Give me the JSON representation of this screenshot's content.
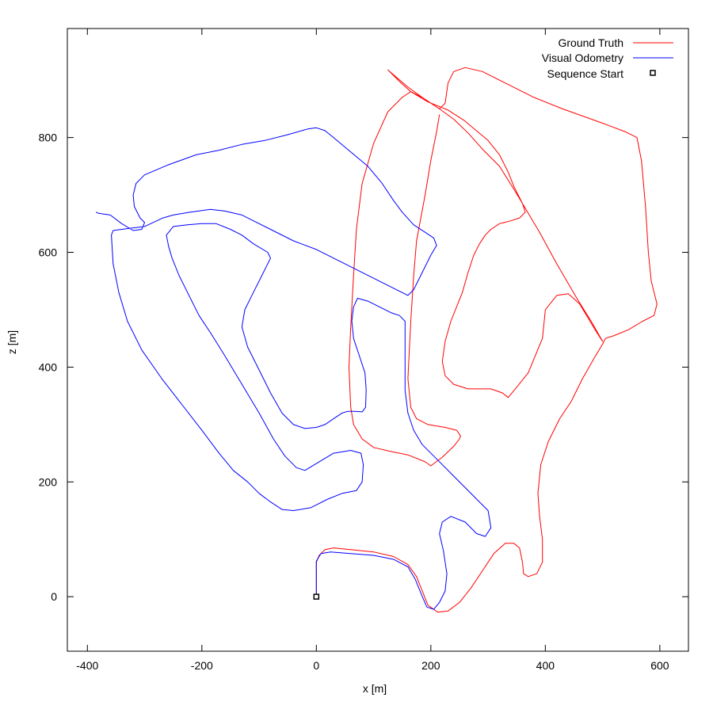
{
  "chart_data": {
    "type": "line",
    "xlabel": "x [m]",
    "ylabel": "z [m]",
    "xlim": [
      -435,
      650
    ],
    "ylim": [
      -95,
      990
    ],
    "xticks": [
      -400,
      -200,
      0,
      200,
      400,
      600
    ],
    "yticks": [
      0,
      200,
      400,
      600,
      800
    ],
    "grid": false,
    "legend_position": "top-right",
    "series": [
      {
        "name": "Ground Truth",
        "color": "#ff0000",
        "points": [
          [
            0,
            0
          ],
          [
            0,
            60
          ],
          [
            5,
            72
          ],
          [
            15,
            82
          ],
          [
            30,
            85
          ],
          [
            60,
            82
          ],
          [
            100,
            78
          ],
          [
            135,
            70
          ],
          [
            160,
            56
          ],
          [
            175,
            35
          ],
          [
            185,
            10
          ],
          [
            195,
            -15
          ],
          [
            212,
            -27
          ],
          [
            230,
            -25
          ],
          [
            250,
            -10
          ],
          [
            270,
            15
          ],
          [
            290,
            45
          ],
          [
            310,
            75
          ],
          [
            330,
            93
          ],
          [
            345,
            93
          ],
          [
            355,
            85
          ],
          [
            360,
            60
          ],
          [
            362,
            40
          ],
          [
            370,
            35
          ],
          [
            385,
            40
          ],
          [
            395,
            60
          ],
          [
            395,
            100
          ],
          [
            390,
            140
          ],
          [
            387,
            180
          ],
          [
            392,
            230
          ],
          [
            405,
            270
          ],
          [
            425,
            310
          ],
          [
            445,
            340
          ],
          [
            465,
            380
          ],
          [
            485,
            415
          ],
          [
            500,
            440
          ],
          [
            505,
            450
          ],
          [
            520,
            455
          ],
          [
            545,
            465
          ],
          [
            570,
            480
          ],
          [
            590,
            490
          ],
          [
            595,
            510
          ],
          [
            585,
            550
          ],
          [
            580,
            600
          ],
          [
            575,
            680
          ],
          [
            568,
            760
          ],
          [
            560,
            800
          ],
          [
            540,
            810
          ],
          [
            500,
            825
          ],
          [
            430,
            850
          ],
          [
            380,
            870
          ],
          [
            330,
            895
          ],
          [
            290,
            915
          ],
          [
            260,
            922
          ],
          [
            240,
            915
          ],
          [
            230,
            895
          ],
          [
            225,
            860
          ],
          [
            215,
            850
          ],
          [
            200,
            860
          ],
          [
            185,
            870
          ],
          [
            160,
            888
          ],
          [
            140,
            905
          ],
          [
            125,
            918
          ],
          [
            145,
            898
          ],
          [
            165,
            880
          ],
          [
            195,
            862
          ],
          [
            230,
            848
          ],
          [
            258,
            830
          ],
          [
            300,
            795
          ],
          [
            320,
            770
          ],
          [
            335,
            740
          ],
          [
            345,
            715
          ],
          [
            360,
            685
          ],
          [
            365,
            670
          ],
          [
            355,
            660
          ],
          [
            340,
            655
          ],
          [
            320,
            650
          ],
          [
            305,
            640
          ],
          [
            295,
            630
          ],
          [
            285,
            615
          ],
          [
            275,
            595
          ],
          [
            265,
            565
          ],
          [
            255,
            530
          ],
          [
            235,
            480
          ],
          [
            225,
            445
          ],
          [
            220,
            410
          ],
          [
            225,
            385
          ],
          [
            240,
            370
          ],
          [
            265,
            362
          ],
          [
            305,
            362
          ],
          [
            325,
            355
          ],
          [
            335,
            347
          ],
          [
            350,
            365
          ],
          [
            370,
            390
          ],
          [
            395,
            450
          ],
          [
            400,
            500
          ],
          [
            420,
            525
          ],
          [
            440,
            528
          ],
          [
            460,
            510
          ],
          [
            490,
            460
          ],
          [
            500,
            445
          ],
          [
            480,
            480
          ],
          [
            455,
            520
          ],
          [
            420,
            580
          ],
          [
            390,
            635
          ],
          [
            360,
            685
          ],
          [
            345,
            710
          ],
          [
            320,
            750
          ],
          [
            290,
            780
          ],
          [
            265,
            808
          ],
          [
            240,
            832
          ],
          [
            215,
            850
          ],
          [
            185,
            870
          ],
          [
            165,
            880
          ],
          [
            150,
            870
          ],
          [
            125,
            845
          ],
          [
            100,
            790
          ],
          [
            80,
            720
          ],
          [
            70,
            640
          ],
          [
            65,
            560
          ],
          [
            60,
            470
          ],
          [
            57,
            400
          ],
          [
            60,
            330
          ],
          [
            65,
            300
          ],
          [
            80,
            275
          ],
          [
            100,
            260
          ],
          [
            130,
            253
          ],
          [
            160,
            247
          ],
          [
            190,
            235
          ],
          [
            200,
            228
          ],
          [
            220,
            243
          ],
          [
            240,
            262
          ],
          [
            250,
            275
          ],
          [
            252,
            280
          ],
          [
            245,
            290
          ],
          [
            225,
            295
          ],
          [
            195,
            300
          ],
          [
            175,
            310
          ],
          [
            165,
            330
          ],
          [
            160,
            380
          ],
          [
            165,
            480
          ],
          [
            170,
            560
          ],
          [
            175,
            620
          ],
          [
            190,
            700
          ],
          [
            200,
            760
          ],
          [
            210,
            810
          ],
          [
            215,
            840
          ]
        ]
      },
      {
        "name": "Visual Odometry",
        "color": "#0000ff",
        "points": [
          [
            0,
            0
          ],
          [
            0,
            62
          ],
          [
            8,
            75
          ],
          [
            25,
            78
          ],
          [
            60,
            75
          ],
          [
            100,
            72
          ],
          [
            135,
            65
          ],
          [
            160,
            52
          ],
          [
            173,
            30
          ],
          [
            183,
            5
          ],
          [
            193,
            -18
          ],
          [
            205,
            -22
          ],
          [
            215,
            -10
          ],
          [
            225,
            10
          ],
          [
            228,
            40
          ],
          [
            222,
            80
          ],
          [
            215,
            110
          ],
          [
            220,
            130
          ],
          [
            235,
            140
          ],
          [
            260,
            130
          ],
          [
            280,
            110
          ],
          [
            295,
            105
          ],
          [
            305,
            120
          ],
          [
            300,
            150
          ],
          [
            280,
            170
          ],
          [
            260,
            190
          ],
          [
            235,
            215
          ],
          [
            210,
            240
          ],
          [
            185,
            265
          ],
          [
            170,
            290
          ],
          [
            160,
            320
          ],
          [
            155,
            360
          ],
          [
            155,
            420
          ],
          [
            155,
            480
          ],
          [
            145,
            490
          ],
          [
            130,
            495
          ],
          [
            110,
            505
          ],
          [
            90,
            515
          ],
          [
            72,
            520
          ],
          [
            65,
            505
          ],
          [
            62,
            480
          ],
          [
            65,
            450
          ],
          [
            75,
            420
          ],
          [
            85,
            390
          ],
          [
            87,
            360
          ],
          [
            86,
            330
          ],
          [
            80,
            322
          ],
          [
            68,
            323
          ],
          [
            55,
            323
          ],
          [
            45,
            320
          ],
          [
            30,
            310
          ],
          [
            15,
            300
          ],
          [
            0,
            295
          ],
          [
            -20,
            293
          ],
          [
            -40,
            300
          ],
          [
            -60,
            320
          ],
          [
            -80,
            355
          ],
          [
            -100,
            395
          ],
          [
            -120,
            435
          ],
          [
            -130,
            470
          ],
          [
            -125,
            500
          ],
          [
            -110,
            530
          ],
          [
            -95,
            560
          ],
          [
            -80,
            590
          ],
          [
            -85,
            600
          ],
          [
            -110,
            615
          ],
          [
            -130,
            630
          ],
          [
            -150,
            640
          ],
          [
            -175,
            650
          ],
          [
            -200,
            650
          ],
          [
            -225,
            648
          ],
          [
            -250,
            645
          ],
          [
            -262,
            630
          ],
          [
            -258,
            610
          ],
          [
            -252,
            590
          ],
          [
            -240,
            560
          ],
          [
            -225,
            530
          ],
          [
            -205,
            490
          ],
          [
            -185,
            460
          ],
          [
            -160,
            420
          ],
          [
            -130,
            370
          ],
          [
            -100,
            320
          ],
          [
            -75,
            275
          ],
          [
            -55,
            245
          ],
          [
            -35,
            225
          ],
          [
            -20,
            220
          ],
          [
            5,
            235
          ],
          [
            30,
            250
          ],
          [
            60,
            255
          ],
          [
            78,
            250
          ],
          [
            82,
            230
          ],
          [
            80,
            200
          ],
          [
            70,
            185
          ],
          [
            45,
            180
          ],
          [
            20,
            170
          ],
          [
            -10,
            155
          ],
          [
            -40,
            150
          ],
          [
            -60,
            152
          ],
          [
            -80,
            165
          ],
          [
            -100,
            180
          ],
          [
            -120,
            200
          ],
          [
            -145,
            220
          ],
          [
            -170,
            250
          ],
          [
            -200,
            290
          ],
          [
            -235,
            335
          ],
          [
            -270,
            380
          ],
          [
            -305,
            430
          ],
          [
            -330,
            480
          ],
          [
            -345,
            530
          ],
          [
            -355,
            580
          ],
          [
            -358,
            630
          ],
          [
            -355,
            638
          ],
          [
            -340,
            640
          ],
          [
            -300,
            645
          ],
          [
            -268,
            660
          ],
          [
            -250,
            665
          ],
          [
            -220,
            670
          ],
          [
            -185,
            675
          ],
          [
            -160,
            672
          ],
          [
            -130,
            665
          ],
          [
            -110,
            655
          ],
          [
            -80,
            640
          ],
          [
            -40,
            620
          ],
          [
            0,
            605
          ],
          [
            40,
            585
          ],
          [
            80,
            565
          ],
          [
            120,
            545
          ],
          [
            160,
            525
          ],
          [
            170,
            535
          ],
          [
            180,
            555
          ],
          [
            190,
            575
          ],
          [
            200,
            595
          ],
          [
            210,
            612
          ],
          [
            205,
            625
          ],
          [
            190,
            635
          ],
          [
            170,
            648
          ],
          [
            150,
            670
          ],
          [
            135,
            690
          ],
          [
            115,
            720
          ],
          [
            90,
            750
          ],
          [
            60,
            775
          ],
          [
            30,
            800
          ],
          [
            15,
            812
          ],
          [
            0,
            817
          ],
          [
            -15,
            815
          ],
          [
            -50,
            805
          ],
          [
            -90,
            795
          ],
          [
            -130,
            788
          ],
          [
            -170,
            778
          ],
          [
            -210,
            770
          ],
          [
            -260,
            752
          ],
          [
            -300,
            735
          ],
          [
            -315,
            720
          ],
          [
            -320,
            700
          ],
          [
            -318,
            680
          ],
          [
            -308,
            660
          ],
          [
            -300,
            652
          ],
          [
            -305,
            640
          ],
          [
            -320,
            638
          ],
          [
            -340,
            650
          ],
          [
            -360,
            665
          ],
          [
            -380,
            668
          ],
          [
            -385,
            670
          ]
        ]
      }
    ],
    "markers": [
      {
        "name": "Sequence Start",
        "x": 0,
        "y": 0,
        "shape": "square",
        "color": "#000000"
      }
    ]
  }
}
